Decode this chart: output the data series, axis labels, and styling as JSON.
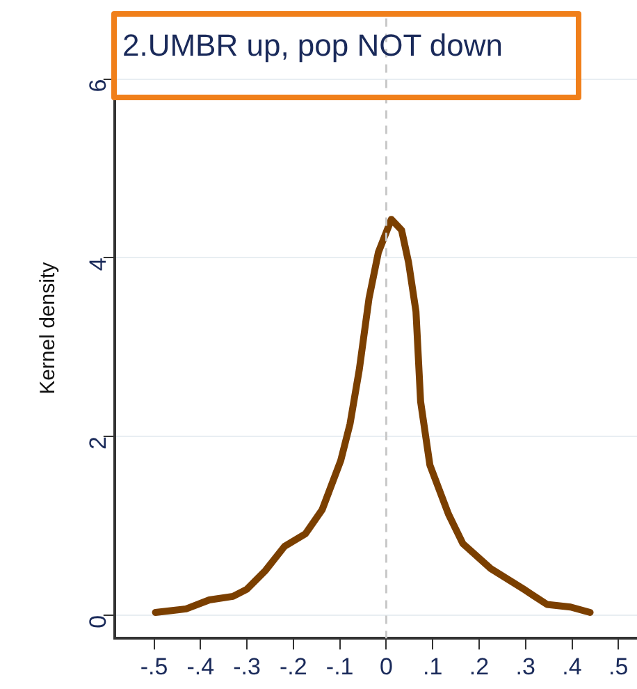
{
  "chart_data": {
    "type": "line",
    "title": "2.UMBR up, pop NOT down",
    "ylabel": "Kernel density",
    "x": [
      -0.497,
      -0.431,
      -0.381,
      -0.33,
      -0.3,
      -0.26,
      -0.219,
      -0.174,
      -0.138,
      -0.098,
      -0.078,
      -0.058,
      -0.037,
      -0.017,
      0.011,
      0.033,
      0.048,
      0.064,
      0.074,
      0.094,
      0.134,
      0.165,
      0.225,
      0.296,
      0.346,
      0.397,
      0.439
    ],
    "series": [
      {
        "color": "#7b3f00",
        "values": [
          0.03,
          0.07,
          0.17,
          0.21,
          0.29,
          0.5,
          0.77,
          0.91,
          1.18,
          1.73,
          2.14,
          2.75,
          3.55,
          4.06,
          4.43,
          4.31,
          3.95,
          3.4,
          2.39,
          1.68,
          1.13,
          0.8,
          0.52,
          0.29,
          0.12,
          0.09,
          0.03
        ]
      }
    ],
    "xlim": [
      -0.585,
      0.54
    ],
    "ylim": [
      -0.26,
      6.68
    ],
    "xticks": [
      {
        "value": -0.5,
        "label": "-.5"
      },
      {
        "value": -0.4,
        "label": "-.4"
      },
      {
        "value": -0.3,
        "label": "-.3"
      },
      {
        "value": -0.2,
        "label": "-.2"
      },
      {
        "value": -0.1,
        "label": "-.1"
      },
      0,
      {
        "value": 0.1,
        "label": ".1"
      },
      {
        "value": 0.2,
        "label": ".2"
      },
      {
        "value": 0.3,
        "label": ".3"
      },
      {
        "value": 0.4,
        "label": ".4"
      },
      {
        "value": 0.5,
        "label": ".5"
      }
    ],
    "yticks": [
      0,
      2,
      4,
      6
    ],
    "ref_lines": [
      {
        "axis": "x",
        "value": 0,
        "color": "#c8c8c8",
        "line_style": "dashed"
      }
    ],
    "grid": "y",
    "legend": false,
    "marker": "none",
    "line_style": "solid"
  }
}
